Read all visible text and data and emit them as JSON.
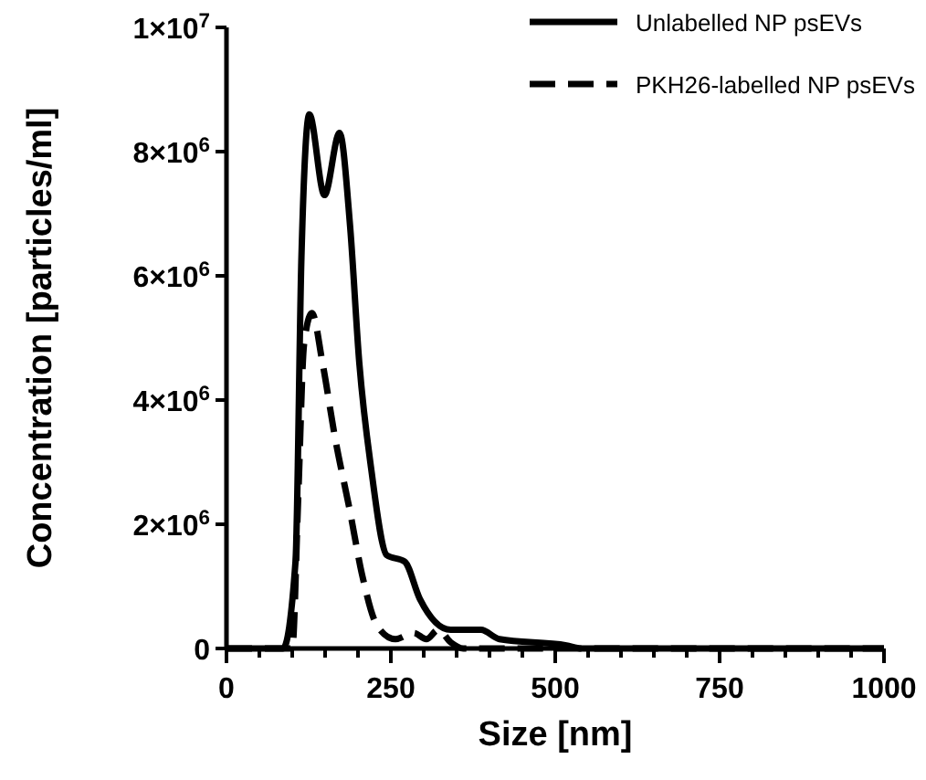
{
  "chart_data": {
    "type": "line",
    "xlabel": "Size [nm]",
    "ylabel": "Concentration [particles/ml]",
    "xlim": [
      0,
      1000
    ],
    "ylim": [
      0,
      10000000
    ],
    "xticks": [
      0,
      {
        "value": 50,
        "label": null
      },
      {
        "value": 100,
        "label": null
      },
      {
        "value": 150,
        "label": null
      },
      {
        "value": 200,
        "label": null
      },
      250,
      {
        "value": 300,
        "label": null
      },
      {
        "value": 350,
        "label": null
      },
      {
        "value": 400,
        "label": null
      },
      {
        "value": 450,
        "label": null
      },
      500,
      {
        "value": 550,
        "label": null
      },
      {
        "value": 600,
        "label": null
      },
      {
        "value": 650,
        "label": null
      },
      {
        "value": 700,
        "label": null
      },
      750,
      {
        "value": 800,
        "label": null
      },
      {
        "value": 850,
        "label": null
      },
      {
        "value": 900,
        "label": null
      },
      {
        "value": 950,
        "label": null
      },
      1000
    ],
    "yticks": [
      0,
      {
        "value": 2000000,
        "label": "2×10$^{6}$"
      },
      {
        "value": 4000000,
        "label": "4×10$^{6}$"
      },
      {
        "value": 6000000,
        "label": "6×10$^{6}$"
      },
      {
        "value": 8000000,
        "label": "8×10$^{6}$"
      },
      {
        "value": 10000000,
        "label": "1×10$^{7}$"
      }
    ],
    "grid": false,
    "legend": "top right",
    "series": [
      {
        "name": "Unlabelled NP psEVs",
        "color": "#000000",
        "line_style": "solid",
        "x": [
          0,
          86,
          105,
          114,
          126,
          149,
          172,
          188,
          202,
          220,
          244,
          271,
          294,
          341,
          387,
          415,
          517,
          540,
          1000
        ],
        "values": [
          0,
          0,
          1400000,
          6300000,
          8600000,
          7300000,
          8300000,
          6800000,
          4600000,
          2900000,
          1500000,
          1400000,
          800000,
          300000,
          300000,
          150000,
          50000,
          0,
          0
        ]
      },
      {
        "name": "PKH26-labelled NP psEVs",
        "color": "#000000",
        "line_style": "dashed",
        "x": [
          0,
          100,
          109,
          118,
          130,
          146,
          165,
          188,
          206,
          230,
          257,
          285,
          304,
          322,
          341,
          360,
          1000
        ],
        "values": [
          0,
          0,
          2400000,
          4900000,
          5400000,
          4600000,
          3400000,
          2200000,
          1200000,
          350000,
          150000,
          250000,
          150000,
          300000,
          100000,
          0,
          0
        ]
      }
    ]
  }
}
